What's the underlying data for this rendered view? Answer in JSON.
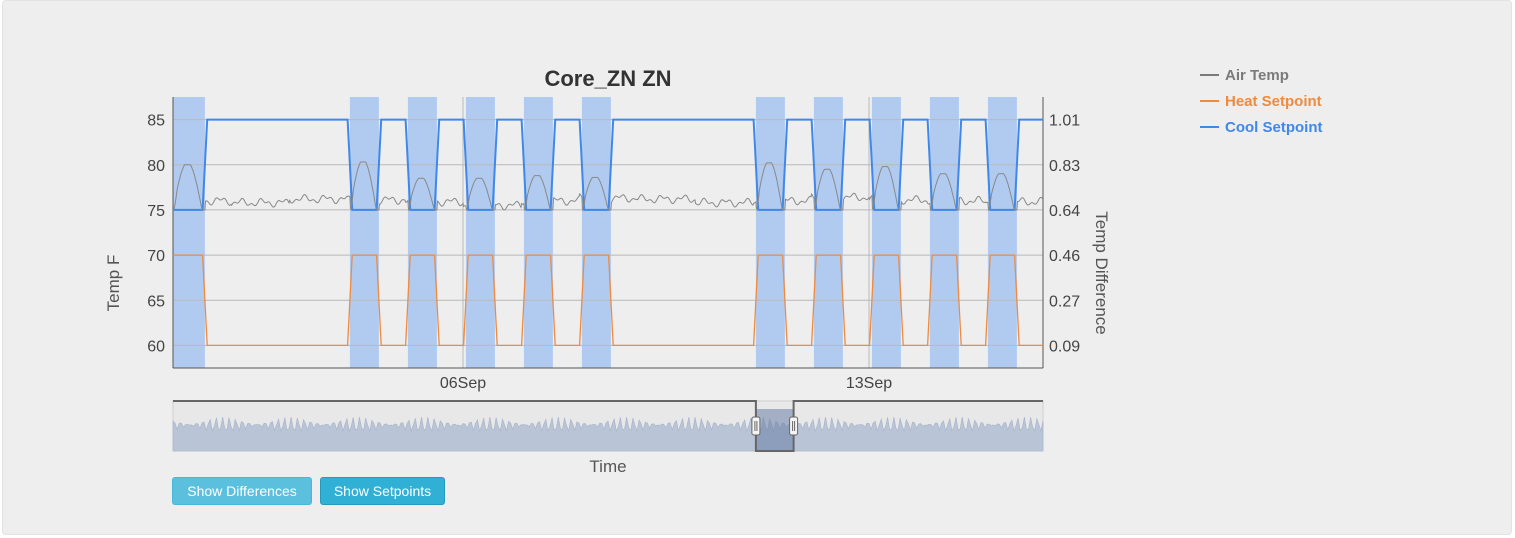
{
  "chart_data": {
    "type": "line",
    "title": "Core_ZN ZN",
    "xlabel": "Time",
    "ylabel": "Temp F",
    "y2label": "Temp Difference",
    "x_range": [
      "2023-09-01",
      "2023-09-16"
    ],
    "x_ticks": [
      {
        "date": "2023-09-06",
        "label": "06Sep"
      },
      {
        "date": "2023-09-13",
        "label": "13Sep"
      }
    ],
    "ylim": [
      57.5,
      87.5
    ],
    "yticks": [
      60,
      65,
      70,
      75,
      80,
      85
    ],
    "y2ticks": [
      "0.09",
      "0.27",
      "0.46",
      "0.64",
      "0.83",
      "1.01"
    ],
    "grid": true,
    "legend_position": "right",
    "occupied_periods": [
      [
        "2023-09-01",
        "2023-09-01.55"
      ],
      [
        "2023-09-04.05",
        "2023-09-04.55"
      ],
      [
        "2023-09-05.05",
        "2023-09-05.55"
      ],
      [
        "2023-09-06.05",
        "2023-09-06.55"
      ],
      [
        "2023-09-07.05",
        "2023-09-07.55"
      ],
      [
        "2023-09-08.05",
        "2023-09-08.55"
      ],
      [
        "2023-09-11.05",
        "2023-09-11.55"
      ],
      [
        "2023-09-12.05",
        "2023-09-12.55"
      ],
      [
        "2023-09-13.05",
        "2023-09-13.55"
      ],
      [
        "2023-09-14.05",
        "2023-09-14.55"
      ],
      [
        "2023-09-15.05",
        "2023-09-15.55"
      ]
    ],
    "series": [
      {
        "name": "Air Temp",
        "color": "#888888",
        "unoccupied_baseline": [
          76,
          75.8,
          76.2,
          76.1,
          75.9,
          75.5,
          76,
          76.3,
          76.2,
          75.8,
          76,
          76.4,
          76.1,
          76,
          75.9,
          76.2
        ],
        "occupied_peaks": [
          80,
          80.3,
          78.5,
          78.5,
          78.8,
          78.6,
          80.2,
          79.5,
          79.8,
          79,
          79
        ]
      },
      {
        "name": "Heat Setpoint",
        "color": "#f08a3c",
        "occupied": 70,
        "unoccupied": 60
      },
      {
        "name": "Cool Setpoint",
        "color": "#3f88e8",
        "occupied": 75,
        "unoccupied": 85
      }
    ]
  },
  "legend": [
    {
      "name": "Air Temp",
      "color": "#7a7a7a"
    },
    {
      "name": "Heat Setpoint",
      "color": "#f08a3c"
    },
    {
      "name": "Cool Setpoint",
      "color": "#3f88e8"
    }
  ],
  "navigator": {
    "range": [
      "2023-09-11.05",
      "2023-09-11.7"
    ]
  },
  "buttons": {
    "differences": "Show Differences",
    "setpoints": "Show Setpoints"
  }
}
